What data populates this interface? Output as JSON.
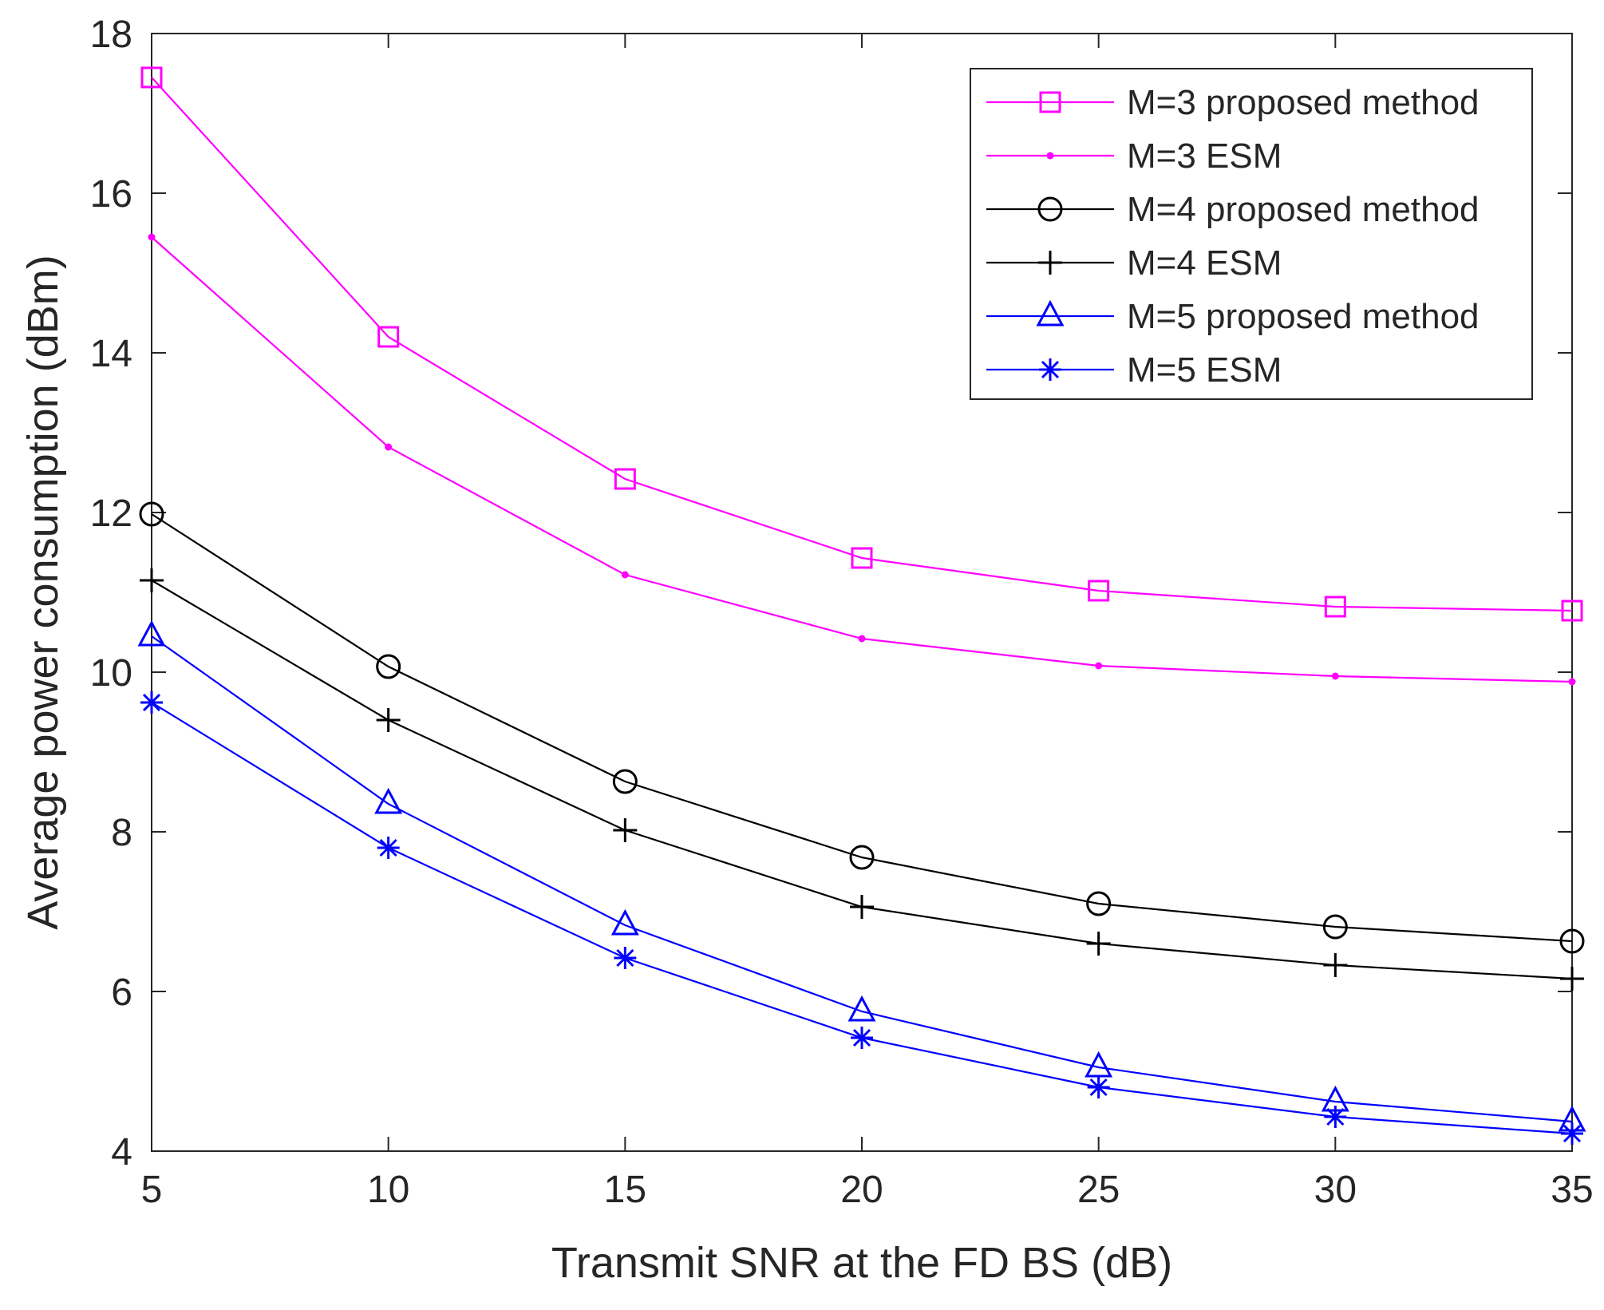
{
  "chart_data": {
    "type": "line",
    "title": "",
    "xlabel": "Transmit SNR at the FD BS (dB)",
    "ylabel": "Average power consumption (dBm)",
    "x": [
      5,
      10,
      15,
      20,
      25,
      30,
      35
    ],
    "xlim": [
      5,
      35
    ],
    "ylim": [
      4,
      18
    ],
    "xticks": [
      5,
      10,
      15,
      20,
      25,
      30,
      35
    ],
    "yticks": [
      4,
      6,
      8,
      10,
      12,
      14,
      16,
      18
    ],
    "grid": false,
    "legend_position": "top-right",
    "series": [
      {
        "name": "M=3 proposed method",
        "color": "#ff00ff",
        "marker": "square",
        "values": [
          17.45,
          14.2,
          12.42,
          11.43,
          11.02,
          10.82,
          10.77
        ]
      },
      {
        "name": "M=3 ESM",
        "color": "#ff00ff",
        "marker": "dot",
        "values": [
          15.45,
          12.82,
          11.22,
          10.42,
          10.08,
          9.95,
          9.88
        ]
      },
      {
        "name": "M=4 proposed method",
        "color": "#000000",
        "marker": "circle",
        "values": [
          11.98,
          10.07,
          8.63,
          7.68,
          7.1,
          6.81,
          6.63
        ]
      },
      {
        "name": "M=4 ESM",
        "color": "#000000",
        "marker": "plus",
        "values": [
          11.15,
          9.4,
          8.02,
          7.06,
          6.6,
          6.33,
          6.16
        ]
      },
      {
        "name": "M=5 proposed method",
        "color": "#0000ff",
        "marker": "triangle",
        "values": [
          10.45,
          8.35,
          6.83,
          5.75,
          5.05,
          4.62,
          4.37
        ]
      },
      {
        "name": "M=5 ESM",
        "color": "#0000ff",
        "marker": "star",
        "values": [
          9.62,
          7.8,
          6.42,
          5.42,
          4.8,
          4.43,
          4.22
        ]
      }
    ]
  }
}
